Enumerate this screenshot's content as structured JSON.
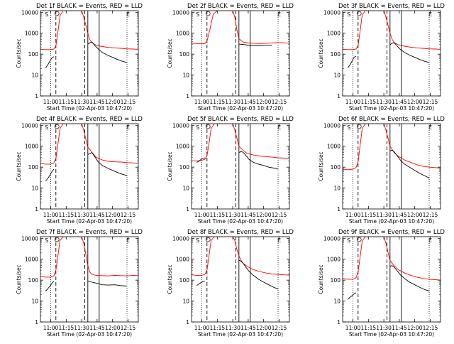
{
  "panels_common": {
    "ylabel": "Counts/sec",
    "xlabel": "Start Time (02-Apr-03 10:47:20)",
    "x_ticks": [
      {
        "t": 660,
        "label": "11:00"
      },
      {
        "t": 675,
        "label": "11:15"
      },
      {
        "t": 690,
        "label": "11:30"
      },
      {
        "t": 705,
        "label": "11:45"
      },
      {
        "t": 720,
        "label": "12:00"
      },
      {
        "t": 735,
        "label": "12:15"
      }
    ],
    "y_ticks": [
      {
        "v": 1,
        "label": "1"
      },
      {
        "v": 10,
        "label": "10"
      },
      {
        "v": 100,
        "label": "100"
      },
      {
        "v": 1000,
        "label": "1000"
      },
      {
        "v": 10000,
        "label": "10000"
      }
    ],
    "xlim": [
      650,
      745
    ],
    "ylim": [
      1,
      12000
    ],
    "yscale": "log",
    "markers": {
      "S": "S",
      "E": "E",
      "O": "O"
    }
  },
  "chart_data": [
    {
      "type": "line",
      "title": "Det 1f BLACK = Events, RED = LLD",
      "ylabel": "Counts/sec",
      "xlabel": "Start Time (02-Apr-03 10:47:20)",
      "dotted_lines": [
        660,
        734
      ],
      "dashed_lines": [
        665,
        693
      ],
      "solid_lines": [
        696,
        707
      ],
      "series": [
        {
          "color": "#ff0000",
          "x": [
            650,
            655,
            660,
            663,
            665,
            667,
            669,
            672,
            676,
            680,
            685,
            690,
            692,
            694,
            696,
            698,
            700,
            704,
            710,
            716,
            722,
            728,
            734,
            740,
            745
          ],
          "y": [
            170,
            165,
            165,
            175,
            250,
            1200,
            7000,
            12000,
            12000,
            12000,
            12000,
            12000,
            6000,
            2500,
            1000,
            500,
            350,
            270,
            230,
            210,
            200,
            190,
            180,
            175,
            170
          ]
        },
        {
          "color": "#000000",
          "x": [
            655,
            657,
            659,
            661,
            663
          ],
          "y": [
            22,
            30,
            45,
            65,
            75
          ]
        },
        {
          "color": "#000000",
          "x": [
            696,
            698,
            700,
            703,
            706,
            710,
            715,
            720,
            725,
            730,
            734
          ],
          "y": [
            300,
            350,
            380,
            250,
            180,
            120,
            90,
            70,
            55,
            45,
            40
          ]
        }
      ]
    },
    {
      "type": "line",
      "title": "Det 2f BLACK = Events, RED = LLD",
      "ylabel": "Counts/sec",
      "xlabel": "Start Time (02-Apr-03 10:47:20)",
      "dotted_lines": [
        660,
        734
      ],
      "dashed_lines": [
        665,
        693
      ],
      "solid_lines": [
        696,
        707
      ],
      "series": [
        {
          "color": "#ff0000",
          "x": [
            650,
            655,
            660,
            663,
            665,
            668,
            671,
            675,
            680,
            685,
            690,
            692,
            694,
            696,
            700,
            705,
            710,
            716,
            722,
            728,
            734,
            740,
            745
          ],
          "y": [
            330,
            320,
            310,
            320,
            420,
            1600,
            8000,
            12000,
            12000,
            12000,
            12000,
            6000,
            1500,
            550,
            380,
            340,
            330,
            320,
            330,
            340,
            360,
            350,
            330
          ]
        },
        {
          "color": "#000000",
          "x": [
            696,
            700,
            705,
            710,
            716,
            722,
            728
          ],
          "y": [
            300,
            290,
            270,
            260,
            260,
            265,
            270
          ]
        }
      ]
    },
    {
      "type": "line",
      "title": "Det 3f BLACK = Events, RED = LLD",
      "ylabel": "Counts/sec",
      "xlabel": "Start Time (02-Apr-03 10:47:20)",
      "dotted_lines": [
        660,
        734
      ],
      "dashed_lines": [
        665,
        693
      ],
      "solid_lines": [
        696,
        707
      ],
      "series": [
        {
          "color": "#ff0000",
          "x": [
            650,
            655,
            660,
            663,
            665,
            667,
            669,
            672,
            676,
            680,
            685,
            690,
            692,
            694,
            696,
            698,
            700,
            704,
            710,
            716,
            722,
            728,
            734,
            740,
            745
          ],
          "y": [
            170,
            165,
            165,
            175,
            260,
            1300,
            7500,
            12000,
            12000,
            12000,
            12000,
            12000,
            6000,
            2500,
            1000,
            520,
            360,
            280,
            240,
            215,
            200,
            190,
            180,
            175,
            170
          ]
        },
        {
          "color": "#000000",
          "x": [
            655,
            657,
            659,
            661,
            663
          ],
          "y": [
            22,
            30,
            45,
            70,
            80
          ]
        },
        {
          "color": "#000000",
          "x": [
            696,
            698,
            700,
            703,
            706,
            710,
            715,
            720,
            725,
            730,
            734
          ],
          "y": [
            280,
            330,
            360,
            240,
            170,
            120,
            90,
            70,
            55,
            45,
            40
          ]
        }
      ]
    },
    {
      "type": "line",
      "title": "Det 4f BLACK = Events, RED = LLD",
      "ylabel": "Counts/sec",
      "xlabel": "Start Time (02-Apr-03 10:47:20)",
      "dotted_lines": [
        660,
        734
      ],
      "dashed_lines": [
        665,
        693
      ],
      "solid_lines": [
        696,
        707
      ],
      "series": [
        {
          "color": "#ff0000",
          "x": [
            650,
            655,
            660,
            663,
            665,
            667,
            669,
            672,
            676,
            680,
            685,
            690,
            692,
            694,
            696,
            698,
            700,
            704,
            710,
            716,
            722,
            728,
            734,
            740,
            745
          ],
          "y": [
            150,
            140,
            140,
            160,
            260,
            1300,
            7000,
            12000,
            12000,
            12000,
            12000,
            12000,
            6000,
            2200,
            900,
            700,
            500,
            300,
            220,
            190,
            180,
            175,
            165,
            160,
            150
          ]
        },
        {
          "color": "#000000",
          "x": [
            655,
            657,
            659,
            661,
            663
          ],
          "y": [
            22,
            28,
            40,
            60,
            80
          ]
        },
        {
          "color": "#000000",
          "x": [
            696,
            698,
            700,
            703,
            706,
            710,
            715,
            720,
            725,
            730,
            734
          ],
          "y": [
            400,
            450,
            500,
            300,
            180,
            120,
            90,
            70,
            55,
            45,
            40
          ]
        }
      ]
    },
    {
      "type": "line",
      "title": "Det 5f BLACK = Events, RED = LLD",
      "ylabel": "Counts/sec",
      "xlabel": "Start Time (02-Apr-03 10:47:20)",
      "dotted_lines": [
        660,
        734
      ],
      "dashed_lines": [
        665,
        693
      ],
      "solid_lines": [
        696,
        707
      ],
      "series": [
        {
          "color": "#ff0000",
          "x": [
            650,
            655,
            660,
            663,
            665,
            667,
            669,
            672,
            676,
            680,
            685,
            690,
            692,
            694,
            696,
            698,
            700,
            704,
            710,
            716,
            722,
            728,
            734,
            740,
            745
          ],
          "y": [
            200,
            200,
            210,
            240,
            350,
            1400,
            7000,
            12000,
            12000,
            12000,
            12000,
            12000,
            6000,
            2500,
            1000,
            800,
            650,
            450,
            380,
            340,
            320,
            300,
            280,
            270,
            260
          ]
        },
        {
          "color": "#000000",
          "x": [
            655,
            657,
            659,
            661,
            663
          ],
          "y": [
            170,
            190,
            230,
            260,
            280
          ]
        },
        {
          "color": "#000000",
          "x": [
            696,
            698,
            700,
            703,
            706,
            710,
            715,
            720,
            725,
            730,
            734
          ],
          "y": [
            500,
            550,
            520,
            350,
            230,
            170,
            140,
            120,
            100,
            90,
            80
          ]
        }
      ]
    },
    {
      "type": "line",
      "title": "Det 6f BLACK = Events, RED = LLD",
      "ylabel": "Counts/sec",
      "xlabel": "Start Time (02-Apr-03 10:47:20)",
      "dotted_lines": [
        660,
        734
      ],
      "dashed_lines": [
        665,
        693
      ],
      "solid_lines": [
        696,
        707
      ],
      "series": [
        {
          "color": "#ff0000",
          "x": [
            650,
            655,
            660,
            663,
            665,
            667,
            669,
            672,
            676,
            680,
            685,
            690,
            692,
            694,
            696,
            698,
            700,
            704,
            710,
            716,
            722,
            728,
            734,
            740,
            745
          ],
          "y": [
            80,
            75,
            80,
            95,
            180,
            1100,
            7000,
            12000,
            12000,
            12000,
            12000,
            12000,
            6000,
            2500,
            1000,
            700,
            500,
            330,
            220,
            170,
            130,
            110,
            100,
            95,
            90
          ]
        },
        {
          "color": "#000000",
          "x": [
            696,
            698,
            700,
            703,
            706,
            710,
            715,
            720,
            725,
            730,
            734
          ],
          "y": [
            600,
            650,
            550,
            350,
            220,
            140,
            100,
            70,
            50,
            38,
            30
          ]
        }
      ]
    },
    {
      "type": "line",
      "title": "Det 7f BLACK = Events, RED = LLD",
      "ylabel": "Counts/sec",
      "xlabel": "Start Time (02-Apr-03 10:47:20)",
      "dotted_lines": [
        660,
        734
      ],
      "dashed_lines": [
        665,
        693
      ],
      "solid_lines": [
        696,
        707
      ],
      "series": [
        {
          "color": "#ff0000",
          "x": [
            650,
            655,
            660,
            663,
            665,
            667,
            669,
            672,
            676,
            680,
            685,
            690,
            692,
            694,
            696,
            698,
            700,
            704,
            710,
            716,
            722,
            728,
            734,
            740,
            745
          ],
          "y": [
            150,
            140,
            140,
            160,
            300,
            1500,
            8000,
            12000,
            12000,
            12000,
            12000,
            12000,
            6000,
            1800,
            500,
            240,
            190,
            170,
            165,
            160,
            170,
            165,
            160,
            170,
            165
          ]
        },
        {
          "color": "#000000",
          "x": [
            655,
            657,
            659,
            661,
            663
          ],
          "y": [
            30,
            38,
            50,
            70,
            90
          ]
        },
        {
          "color": "#000000",
          "x": [
            696,
            700,
            705,
            710,
            716,
            722,
            728,
            734
          ],
          "y": [
            90,
            80,
            70,
            60,
            58,
            60,
            55,
            52
          ]
        }
      ]
    },
    {
      "type": "line",
      "title": "Det 8f BLACK = Events, RED = LLD",
      "ylabel": "Counts/sec",
      "xlabel": "Start Time (02-Apr-03 10:47:20)",
      "dotted_lines": [
        660,
        734
      ],
      "dashed_lines": [
        665,
        693
      ],
      "solid_lines": [
        696,
        707
      ],
      "series": [
        {
          "color": "#ff0000",
          "x": [
            650,
            655,
            660,
            663,
            665,
            667,
            669,
            672,
            676,
            680,
            685,
            690,
            692,
            694,
            696,
            698,
            700,
            704,
            710,
            716,
            722,
            728,
            734,
            740,
            745
          ],
          "y": [
            180,
            170,
            170,
            190,
            300,
            1500,
            8000,
            12000,
            12000,
            12000,
            12000,
            12000,
            8000,
            3000,
            1500,
            900,
            650,
            450,
            320,
            260,
            220,
            200,
            190,
            180,
            175
          ]
        },
        {
          "color": "#000000",
          "x": [
            655,
            657,
            659,
            661,
            663
          ],
          "y": [
            55,
            65,
            75,
            85,
            90
          ]
        },
        {
          "color": "#000000",
          "x": [
            696,
            698,
            700,
            703,
            706,
            710,
            715,
            720,
            725,
            730,
            734
          ],
          "y": [
            900,
            800,
            650,
            400,
            260,
            170,
            110,
            80,
            60,
            45,
            38
          ]
        }
      ]
    },
    {
      "type": "line",
      "title": "Det 9f BLACK = Events, RED = LLD",
      "ylabel": "Counts/sec",
      "xlabel": "Start Time (02-Apr-03 10:47:20)",
      "dotted_lines": [
        660,
        734
      ],
      "dashed_lines": [
        665,
        693
      ],
      "solid_lines": [
        696,
        707
      ],
      "series": [
        {
          "color": "#ff0000",
          "x": [
            650,
            655,
            660,
            663,
            665,
            667,
            669,
            672,
            676,
            680,
            685,
            690,
            692,
            694,
            696,
            698,
            700,
            704,
            710,
            716,
            722,
            728,
            734,
            740,
            745
          ],
          "y": [
            120,
            110,
            110,
            130,
            250,
            1300,
            7500,
            12000,
            12000,
            12000,
            12000,
            12000,
            6000,
            2200,
            900,
            650,
            480,
            320,
            220,
            170,
            140,
            120,
            110,
            105,
            100
          ]
        },
        {
          "color": "#000000",
          "x": [
            655,
            657,
            659,
            661,
            663
          ],
          "y": [
            12,
            15,
            18,
            22,
            25
          ]
        },
        {
          "color": "#000000",
          "x": [
            696,
            698,
            700,
            703,
            706,
            710,
            715,
            720,
            725,
            730,
            734
          ],
          "y": [
            450,
            500,
            420,
            280,
            180,
            120,
            80,
            60,
            45,
            35,
            30
          ]
        }
      ]
    }
  ]
}
